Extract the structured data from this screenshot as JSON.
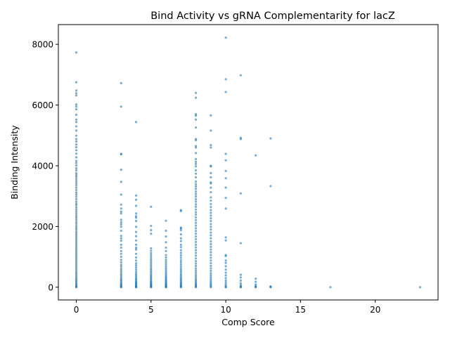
{
  "chart_data": {
    "type": "scatter",
    "title": "Bind Activity vs gRNA Complementarity for lacZ",
    "xlabel": "Comp Score",
    "ylabel": "Binding Intensity",
    "xlim": [
      -1.2,
      24.2
    ],
    "ylim": [
      -420,
      8650
    ],
    "xticks": [
      0,
      5,
      10,
      15,
      20
    ],
    "yticks": [
      0,
      2000,
      4000,
      6000,
      8000
    ],
    "grid": false,
    "legend": "none",
    "point_color": "#1f77b4",
    "point_alpha": 0.6,
    "series": [
      {
        "columns": [
          {
            "x": 0,
            "values": [
              7730,
              6750,
              6480,
              6390,
              6320,
              6020,
              5950,
              5860,
              5680,
              5520,
              5440,
              5300,
              5160,
              4990,
              4880,
              4800,
              4700,
              4610,
              4510,
              4400,
              4280,
              4160,
              4090,
              4010,
              3920,
              3850,
              3760,
              3700,
              3640,
              3570,
              3500,
              3430,
              3360,
              3280,
              3200,
              3120,
              3050,
              2980,
              2900,
              2820,
              2750,
              2700,
              2630,
              2560,
              2490,
              2420,
              2350,
              2290,
              2220,
              2150,
              2090,
              2020,
              1960,
              1900,
              1830,
              1770,
              1710,
              1650,
              1590,
              1530,
              1470,
              1410,
              1350,
              1290,
              1230,
              1170,
              1110,
              1050,
              990,
              930,
              870,
              810,
              750,
              690,
              630,
              570,
              510,
              460,
              410,
              360,
              310,
              260,
              220,
              180,
              140,
              100,
              70,
              40,
              15,
              0
            ]
          },
          {
            "x": 3,
            "values": [
              6720,
              5950,
              4390,
              4380,
              3870,
              3470,
              3050,
              2720,
              2590,
              2490,
              2430,
              2220,
              2140,
              2070,
              1990,
              1860,
              1690,
              1610,
              1530,
              1400,
              1300,
              1190,
              1100,
              1000,
              900,
              820,
              740,
              680,
              610,
              550,
              490,
              430,
              380,
              330,
              280,
              240,
              200,
              160,
              120,
              90,
              60,
              35,
              15,
              0
            ]
          },
          {
            "x": 4,
            "values": [
              5440,
              3020,
              2880,
              2680,
              2430,
              2340,
              2290,
              2180,
              1990,
              1820,
              1680,
              1540,
              1400,
              1300,
              1240,
              1100,
              980,
              880,
              790,
              720,
              650,
              580,
              510,
              450,
              400,
              350,
              300,
              260,
              220,
              180,
              150,
              120,
              90,
              65,
              40,
              20,
              5,
              0
            ]
          },
          {
            "x": 5,
            "values": [
              2650,
              2020,
              1880,
              1760,
              1280,
              1200,
              1120,
              1050,
              980,
              910,
              850,
              790,
              730,
              670,
              610,
              560,
              510,
              460,
              410,
              370,
              330,
              290,
              250,
              215,
              180,
              150,
              120,
              95,
              70,
              50,
              30,
              15,
              0
            ]
          },
          {
            "x": 6,
            "values": [
              2190,
              1860,
              1670,
              1480,
              1300,
              1190,
              1060,
              980,
              900,
              830,
              760,
              690,
              630,
              570,
              510,
              460,
              410,
              360,
              320,
              280,
              240,
              205,
              170,
              140,
              110,
              85,
              60,
              40,
              20,
              5,
              0
            ]
          },
          {
            "x": 7,
            "values": [
              2540,
              2510,
              1960,
              1940,
              1880,
              1740,
              1610,
              1520,
              1400,
              1320,
              1220,
              1130,
              1050,
              970,
              890,
              820,
              750,
              680,
              610,
              550,
              490,
              430,
              380,
              330,
              280,
              240,
              200,
              160,
              125,
              95,
              65,
              40,
              20,
              0
            ]
          },
          {
            "x": 8,
            "values": [
              6400,
              6240,
              5700,
              5650,
              5520,
              5260,
              4880,
              4840,
              4650,
              4600,
              4420,
              4220,
              4130,
              4060,
              3980,
              3850,
              3740,
              3620,
              3480,
              3390,
              3320,
              3240,
              3150,
              3070,
              2990,
              2900,
              2820,
              2730,
              2650,
              2560,
              2470,
              2390,
              2300,
              2210,
              2120,
              2030,
              1940,
              1850,
              1760,
              1670,
              1580,
              1490,
              1400,
              1310,
              1220,
              1130,
              1040,
              950,
              860,
              780,
              700,
              620,
              550,
              480,
              410,
              350,
              290,
              240,
              190,
              150,
              110,
              75,
              45,
              20,
              0
            ]
          },
          {
            "x": 9,
            "values": [
              5660,
              5160,
              4680,
              4600,
              4000,
              3980,
              3760,
              3620,
              3450,
              3420,
              3280,
              3130,
              2960,
              2850,
              2740,
              2640,
              2540,
              2450,
              2360,
              2270,
              2180,
              2080,
              1990,
              1900,
              1800,
              1710,
              1610,
              1510,
              1420,
              1330,
              1240,
              1150,
              1060,
              970,
              880,
              790,
              700,
              620,
              540,
              460,
              390,
              320,
              260,
              200,
              150,
              105,
              65,
              30,
              0
            ]
          },
          {
            "x": 10,
            "values": [
              8220,
              6850,
              6430,
              4390,
              4180,
              3830,
              3590,
              3280,
              2940,
              2590,
              1640,
              1540,
              1060,
              1030,
              880,
              800,
              690,
              580,
              480,
              390,
              300,
              220,
              150,
              90,
              40,
              10,
              0
            ]
          },
          {
            "x": 11,
            "values": [
              6980,
              4920,
              4880,
              3090,
              1450,
              410,
              320,
              220,
              130,
              70,
              30,
              10,
              0
            ]
          },
          {
            "x": 12,
            "values": [
              4340,
              280,
              180,
              90,
              40,
              10,
              0
            ]
          },
          {
            "x": 13,
            "values": [
              4900,
              3330,
              30,
              10,
              0
            ]
          },
          {
            "x": 17,
            "values": [
              0
            ]
          },
          {
            "x": 23,
            "values": [
              0
            ]
          }
        ]
      }
    ]
  }
}
